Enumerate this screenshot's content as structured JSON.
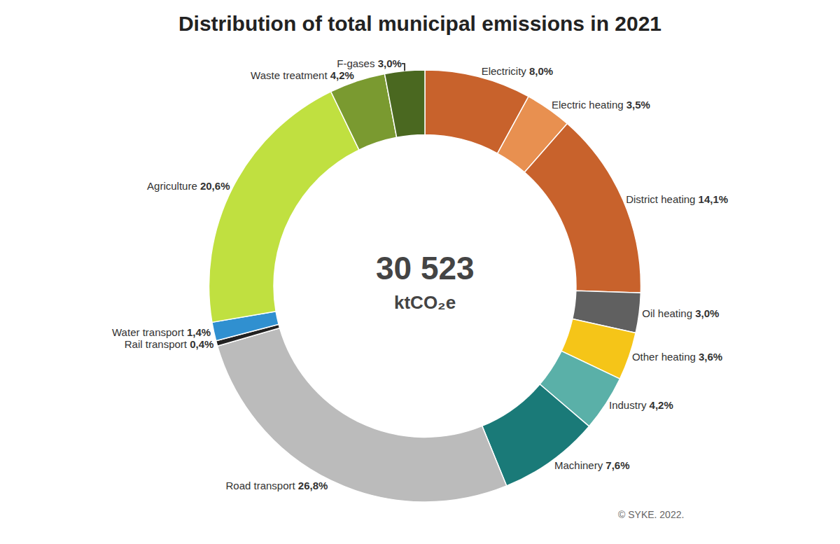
{
  "chart_data": {
    "type": "pie",
    "title": "Distribution of total municipal emissions in 2021",
    "categories": [
      "Electricity",
      "Electric heating",
      "District heating",
      "Oil heating",
      "Other heating",
      "Industry",
      "Machinery",
      "Road transport",
      "Rail transport",
      "Water transport",
      "Agriculture",
      "Waste treatment",
      "F-gases"
    ],
    "values": [
      8.0,
      3.5,
      14.1,
      3.0,
      3.6,
      4.2,
      7.6,
      26.8,
      0.4,
      1.4,
      20.6,
      4.2,
      3.0
    ],
    "value_labels": [
      "8,0%",
      "3,5%",
      "14,1%",
      "3,0%",
      "3,6%",
      "4,2%",
      "7,6%",
      "26,8%",
      "0,4%",
      "1,4%",
      "20,6%",
      "4,2%",
      "3,0%"
    ],
    "colors": [
      "#c8622c",
      "#e89050",
      "#c8622c",
      "#606060",
      "#f5c518",
      "#5ab0a8",
      "#1a7a78",
      "#bbbbbb",
      "#222222",
      "#3090d0",
      "#c0e040",
      "#7a9a30",
      "#4a6820"
    ],
    "data_labels": true,
    "annotations": [
      "30 523",
      "ktCO₂e",
      "© SYKE. 2022."
    ]
  }
}
